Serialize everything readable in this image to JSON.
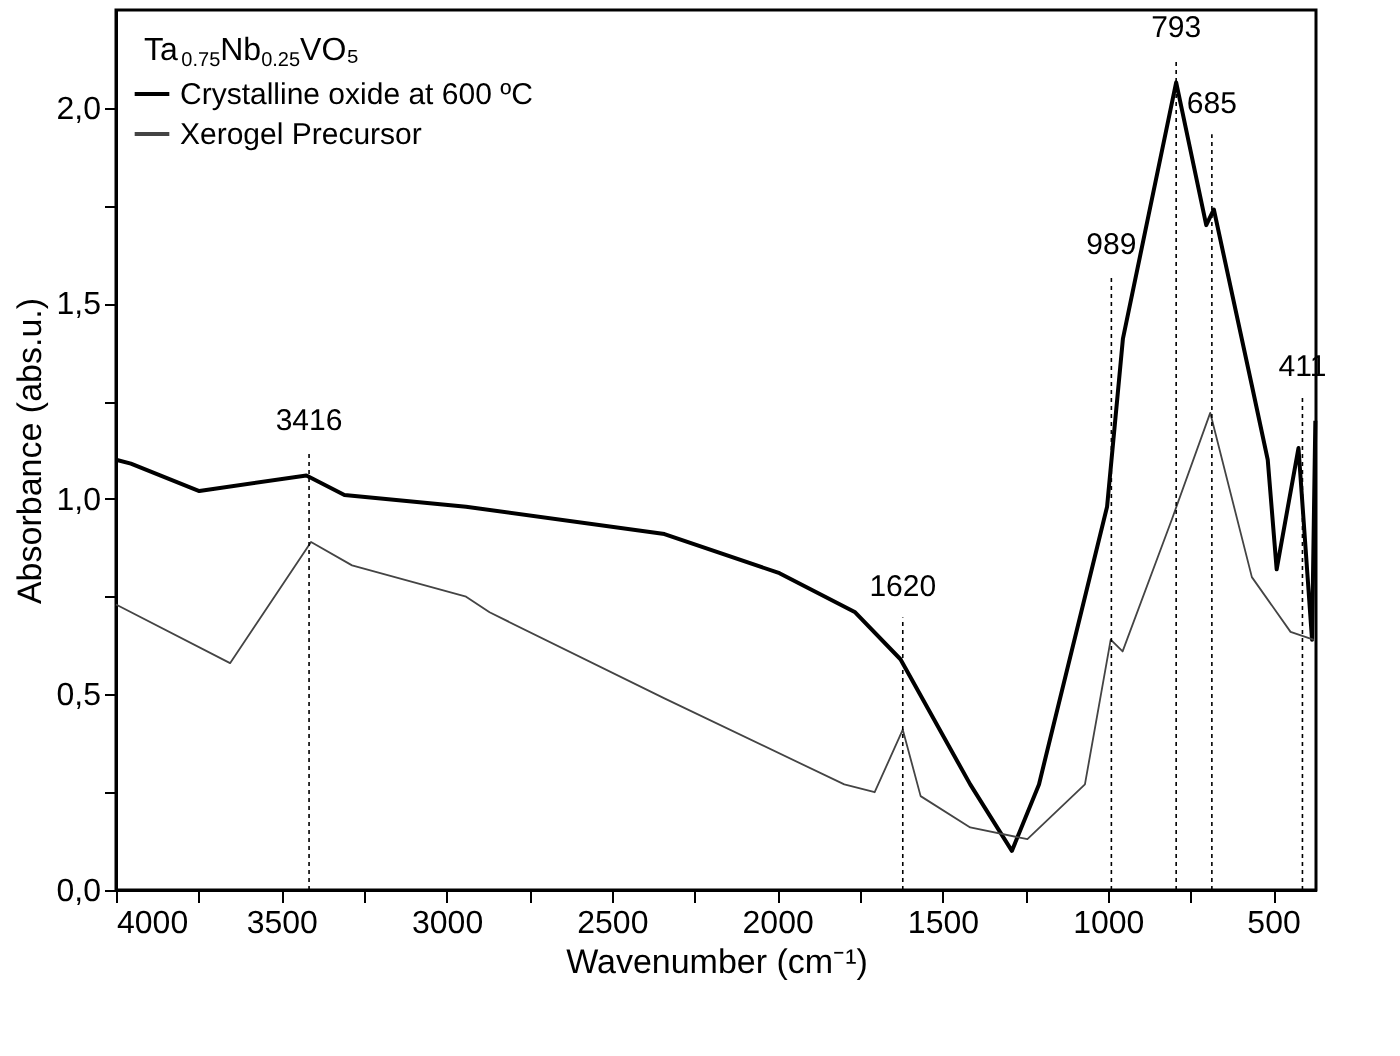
{
  "chart_data": {
    "type": "line",
    "xlabel": "Wavenumber (cm⁻¹)",
    "ylabel": "Absorbance (abs.u.)",
    "legend_title": "Ta$_{0.75}$Nb$_{0.25}$VO₅",
    "xlim": [
      4000,
      370
    ],
    "ylim": [
      0,
      2.25
    ],
    "xticks": [
      {
        "value": 3750,
        "label": null
      },
      {
        "value": 3250,
        "label": null
      },
      {
        "value": 2750,
        "label": null
      },
      {
        "value": 2250,
        "label": null
      },
      {
        "value": 1750,
        "label": null
      },
      {
        "value": 1250,
        "label": null
      },
      {
        "value": 750,
        "label": null
      },
      4000,
      3500,
      3000,
      2500,
      2000,
      1500,
      1000,
      500
    ],
    "yticks": [
      {
        "value": 0,
        "label": "0,0"
      },
      {
        "value": 0.5,
        "label": "0,5"
      },
      {
        "value": 1,
        "label": "1,0"
      },
      {
        "value": 1.5,
        "label": "1,5"
      },
      {
        "value": 2,
        "label": "2,0"
      },
      {
        "value": 0.25,
        "label": null
      },
      {
        "value": 0.75,
        "label": null
      },
      {
        "value": 1.25,
        "label": null
      },
      {
        "value": 1.75,
        "label": null
      }
    ],
    "grid": false,
    "legend": "top left",
    "series": [
      {
        "name": "Crystalline oxide at 600 ºC",
        "color": "#000000",
        "x": [
          4000,
          3955,
          3748,
          3424,
          3309,
          2941,
          2341,
          1993,
          1764,
          1627,
          1416,
          1290,
          1208,
          1002,
          954,
          793,
          702,
          679,
          564,
          516,
          489,
          423,
          382,
          372
        ],
        "values": [
          1.1,
          1.09,
          1.02,
          1.06,
          1.01,
          0.98,
          0.91,
          0.81,
          0.71,
          0.59,
          0.27,
          0.1,
          0.27,
          0.98,
          1.41,
          2.065,
          1.7,
          1.74,
          1.29,
          1.1,
          0.82,
          1.13,
          0.64,
          1.2
        ]
      },
      {
        "name": "Xerogel Precursor",
        "color": "#444444",
        "x": [
          4000,
          3655,
          3410,
          3286,
          2941,
          2870,
          2341,
          1797,
          1705,
          1620,
          1566,
          1416,
          1243,
          1069,
          991,
          955,
          805,
          690,
          564,
          447,
          378
        ],
        "values": [
          0.73,
          0.58,
          0.89,
          0.83,
          0.75,
          0.71,
          0.49,
          0.27,
          0.25,
          0.41,
          0.24,
          0.16,
          0.13,
          0.27,
          0.64,
          0.61,
          0.95,
          1.22,
          0.8,
          0.66,
          0.64
        ]
      }
    ],
    "ref_lines": [
      {
        "axis": "x",
        "value": 3416,
        "label": "3416",
        "line_style": "dotted",
        "color": "#000000"
      },
      {
        "axis": "x",
        "value": 1620,
        "label": "1620",
        "line_style": "dotted",
        "color": "#000000"
      },
      {
        "axis": "x",
        "value": 989,
        "label": "989",
        "line_style": "dotted",
        "color": "#000000"
      },
      {
        "axis": "x",
        "value": 793,
        "label": "793",
        "line_style": "dotted",
        "color": "#000000"
      },
      {
        "axis": "x",
        "value": 685,
        "label": "685",
        "line_style": "dotted",
        "color": "#000000"
      },
      {
        "axis": "x",
        "value": 411,
        "label": "411",
        "line_style": "dotted",
        "color": "#000000"
      }
    ]
  }
}
